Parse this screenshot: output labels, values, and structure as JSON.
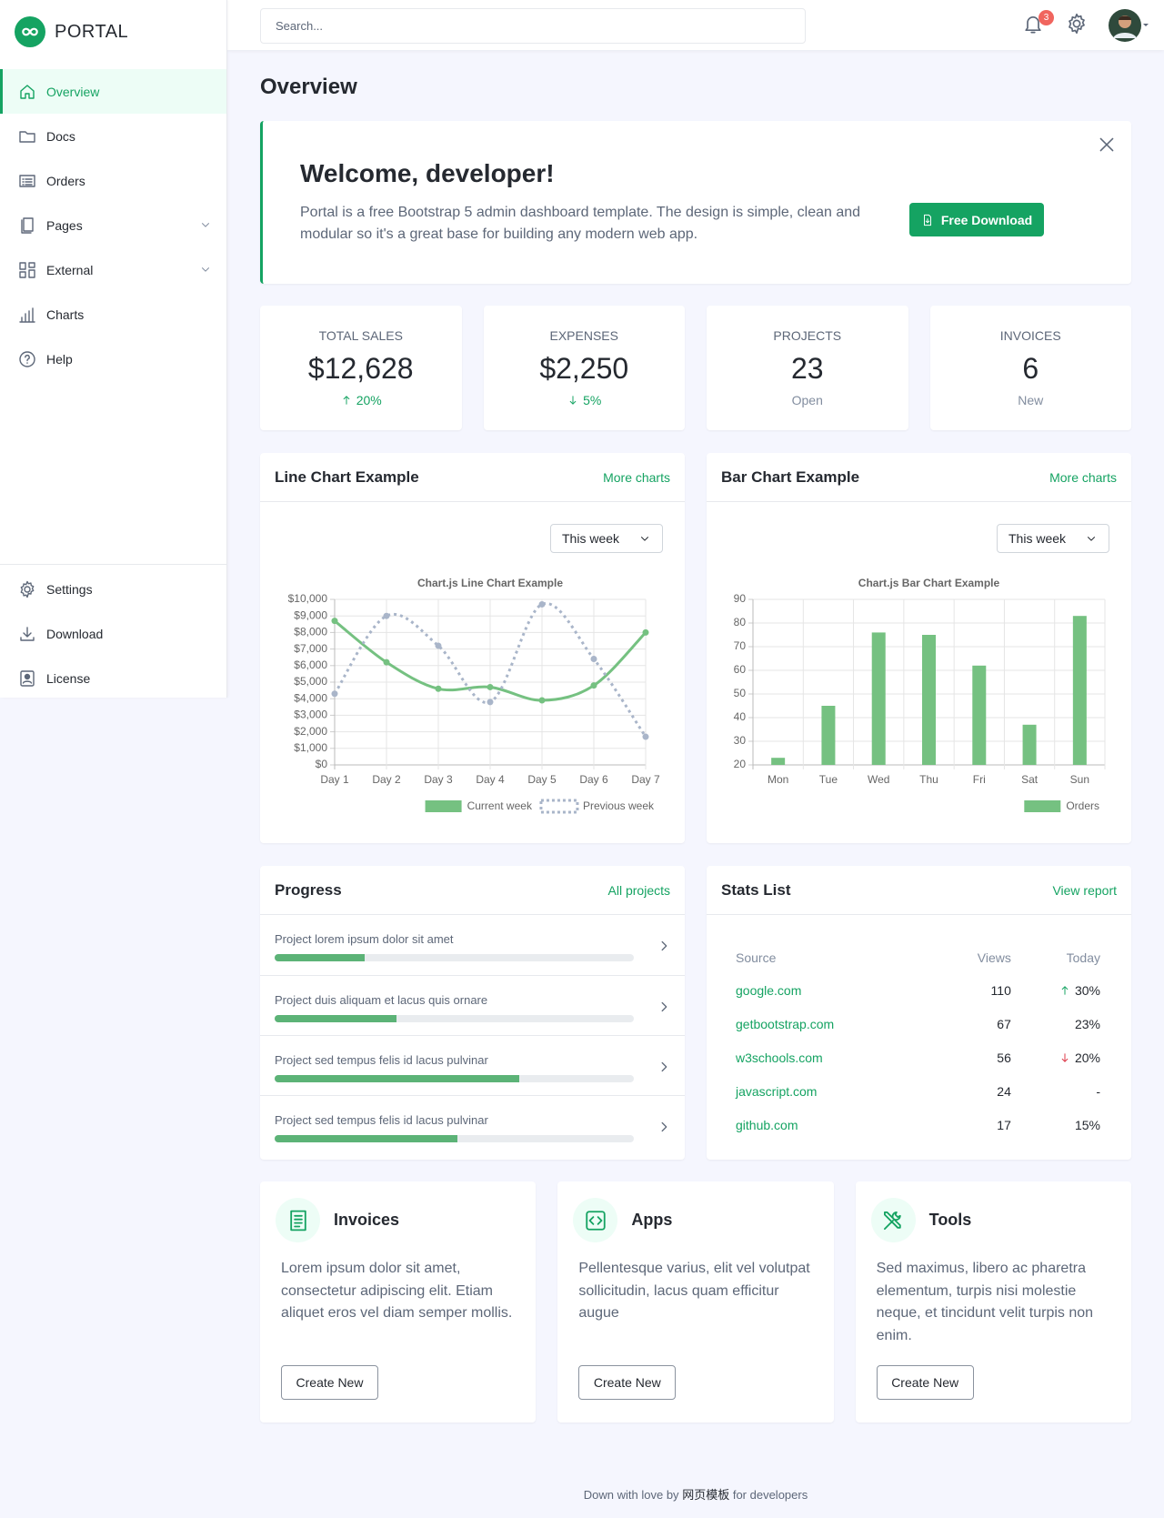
{
  "brand": "PORTAL",
  "search_placeholder": "Search...",
  "notifications": "3",
  "nav": [
    {
      "label": "Overview",
      "active": true
    },
    {
      "label": "Docs"
    },
    {
      "label": "Orders"
    },
    {
      "label": "Pages",
      "submenu": true
    },
    {
      "label": "External",
      "submenu": true
    },
    {
      "label": "Charts"
    },
    {
      "label": "Help"
    }
  ],
  "nav_bottom": [
    {
      "label": "Settings"
    },
    {
      "label": "Download"
    },
    {
      "label": "License"
    }
  ],
  "page_title": "Overview",
  "welcome": {
    "title": "Welcome, developer!",
    "text": "Portal is a free Bootstrap 5 admin dashboard template. The design is simple, clean and modular so it's a great base for building any modern web app.",
    "button": "Free Download"
  },
  "stats": [
    {
      "label": "TOTAL SALES",
      "value": "$12,628",
      "change": "20%",
      "direction": "up"
    },
    {
      "label": "EXPENSES",
      "value": "$2,250",
      "change": "5%",
      "direction": "down"
    },
    {
      "label": "PROJECTS",
      "value": "23",
      "note": "Open"
    },
    {
      "label": "INVOICES",
      "value": "6",
      "note": "New"
    }
  ],
  "chart_cards": [
    {
      "title": "Line Chart Example",
      "link": "More charts",
      "select": "This week"
    },
    {
      "title": "Bar Chart Example",
      "link": "More charts",
      "select": "This week"
    }
  ],
  "chart_data": [
    {
      "type": "line",
      "title": "Chart.js Line Chart Example",
      "categories": [
        "Day 1",
        "Day 2",
        "Day 3",
        "Day 4",
        "Day 5",
        "Day 6",
        "Day 7"
      ],
      "series": [
        {
          "name": "Current week",
          "color": "#75c181",
          "values": [
            8700,
            6200,
            4600,
            4700,
            3900,
            4800,
            8000
          ]
        },
        {
          "name": "Previous week",
          "color": "#a9b5c9",
          "dashed": true,
          "values": [
            4300,
            9000,
            7200,
            3800,
            9700,
            6400,
            1700
          ]
        }
      ],
      "ylim": [
        0,
        10000
      ],
      "yticks": [
        {
          "value": 0,
          "label": "$0"
        },
        {
          "value": 1000,
          "label": "$1,000"
        },
        {
          "value": 2000,
          "label": "$2,000"
        },
        {
          "value": 3000,
          "label": "$3,000"
        },
        {
          "value": 4000,
          "label": "$4,000"
        },
        {
          "value": 5000,
          "label": "$5,000"
        },
        {
          "value": 6000,
          "label": "$6,000"
        },
        {
          "value": 7000,
          "label": "$7,000"
        },
        {
          "value": 8000,
          "label": "$8,000"
        },
        {
          "value": 9000,
          "label": "$9,000"
        },
        {
          "value": 10000,
          "label": "$10,000"
        }
      ],
      "grid": true,
      "legend": "bottom"
    },
    {
      "type": "bar",
      "title": "Chart.js Bar Chart Example",
      "categories": [
        "Mon",
        "Tue",
        "Wed",
        "Thu",
        "Fri",
        "Sat",
        "Sun"
      ],
      "series": [
        {
          "name": "Orders",
          "color": "#75c181",
          "values": [
            23,
            45,
            76,
            75,
            62,
            37,
            83
          ]
        }
      ],
      "ylim": [
        20,
        90
      ],
      "yticks": [
        20,
        30,
        40,
        50,
        60,
        70,
        80,
        90
      ],
      "grid": true,
      "legend": "bottom"
    }
  ],
  "progress": {
    "title": "Progress",
    "link": "All projects",
    "items": [
      {
        "name": "Project lorem ipsum dolor sit amet",
        "value": 25
      },
      {
        "name": "Project duis aliquam et lacus quis ornare",
        "value": 34
      },
      {
        "name": "Project sed tempus felis id lacus pulvinar",
        "value": 68
      },
      {
        "name": "Project sed tempus felis id lacus pulvinar",
        "value": 51
      }
    ]
  },
  "stats_list": {
    "title": "Stats List",
    "link": "View report",
    "columns": [
      "Source",
      "Views",
      "Today"
    ],
    "rows": [
      {
        "source": "google.com",
        "views": "110",
        "today": "30%",
        "trend": "up"
      },
      {
        "source": "getbootstrap.com",
        "views": "67",
        "today": "23%"
      },
      {
        "source": "w3schools.com",
        "views": "56",
        "today": "20%",
        "trend": "down"
      },
      {
        "source": "javascript.com",
        "views": "24",
        "today": "-"
      },
      {
        "source": "github.com",
        "views": "17",
        "today": "15%"
      }
    ]
  },
  "features": [
    {
      "title": "Invoices",
      "text": "Lorem ipsum dolor sit amet, consectetur adipiscing elit. Etiam aliquet eros vel diam semper mollis.",
      "button": "Create New"
    },
    {
      "title": "Apps",
      "text": "Pellentesque varius, elit vel volutpat sollicitudin, lacus quam efficitur augue",
      "button": "Create New"
    },
    {
      "title": "Tools",
      "text": "Sed maximus, libero ac pharetra elementum, turpis nisi molestie neque, et tincidunt velit turpis non enim.",
      "button": "Create New"
    }
  ],
  "footer": {
    "before": "Down with love by",
    "link": "网页模板",
    "after": "for developers"
  }
}
